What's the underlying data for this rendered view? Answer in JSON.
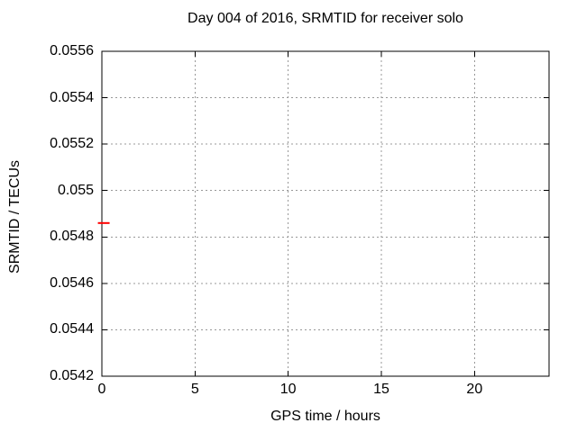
{
  "chart_data": {
    "type": "scatter",
    "title": "Day 004 of 2016, SRMTID for receiver solo",
    "xlabel": "GPS time / hours",
    "ylabel": "SRMTID / TECUs",
    "xlim": [
      0,
      24
    ],
    "ylim": [
      0.0542,
      0.0556
    ],
    "xticks": [
      {
        "value": 0,
        "label": "0"
      },
      {
        "value": 5,
        "label": "5"
      },
      {
        "value": 10,
        "label": "10"
      },
      {
        "value": 15,
        "label": "15"
      },
      {
        "value": 20,
        "label": "20"
      }
    ],
    "yticks": [
      {
        "value": 0.0542,
        "label": "0.0542"
      },
      {
        "value": 0.0544,
        "label": "0.0544"
      },
      {
        "value": 0.0546,
        "label": "0.0546"
      },
      {
        "value": 0.0548,
        "label": "0.0548"
      },
      {
        "value": 0.055,
        "label": "0.055"
      },
      {
        "value": 0.0552,
        "label": "0.0552"
      },
      {
        "value": 0.0554,
        "label": "0.0554"
      },
      {
        "value": 0.0556,
        "label": "0.0556"
      }
    ],
    "grid": true,
    "grid_style": "dashed",
    "legend": "none",
    "series": [
      {
        "name": "SRMTID",
        "color": "#ff0000",
        "marker": "horizontal-dash",
        "marker_width_px": 13,
        "marker_thickness_px": 2,
        "points": [
          {
            "x": 0.1,
            "y": 0.05486
          }
        ]
      }
    ],
    "styles": {
      "background": "#ffffff",
      "border_color": "#000000",
      "grid_color": "#989898",
      "text_color": "#000000"
    }
  }
}
